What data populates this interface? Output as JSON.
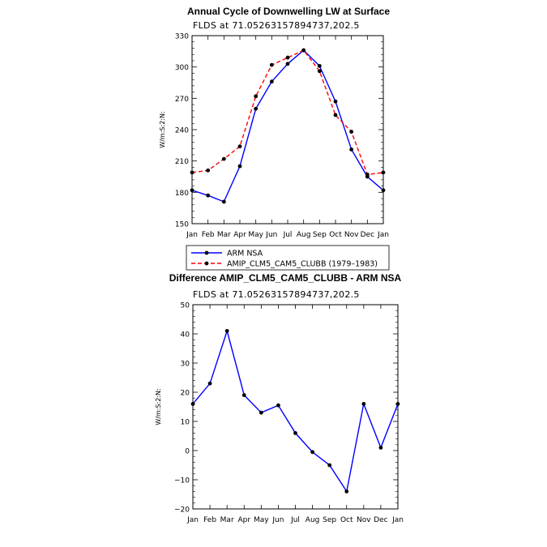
{
  "chart_data": [
    {
      "type": "line",
      "title": "Annual Cycle of Downwelling LW at Surface",
      "subtitle": "FLDS at 71.05263157894737,202.5",
      "xlabel": "",
      "ylabel": "W/m:S:2:N:",
      "categories": [
        "Jan",
        "Feb",
        "Mar",
        "Apr",
        "May",
        "Jun",
        "Jul",
        "Aug",
        "Sep",
        "Oct",
        "Nov",
        "Dec",
        "Jan"
      ],
      "ylim": [
        150,
        330
      ],
      "yticks": [
        150,
        180,
        210,
        240,
        270,
        300,
        330
      ],
      "series": [
        {
          "name": "ARM NSA",
          "color": "#0000ff",
          "dash": "solid",
          "values": [
            182,
            177,
            171,
            205,
            260,
            286,
            303,
            316,
            301,
            267,
            221,
            195,
            182
          ]
        },
        {
          "name": "AMIP_CLM5_CAM5_CLUBB (1979–1983)",
          "color": "#ff0000",
          "dash": "dashed",
          "values": [
            199,
            201,
            212,
            224,
            272,
            302,
            309,
            316,
            296,
            254,
            238,
            197,
            199
          ]
        }
      ],
      "legend": "below"
    },
    {
      "type": "line",
      "title": "Difference AMIP_CLM5_CAM5_CLUBB - ARM NSA",
      "subtitle": "FLDS at 71.05263157894737,202.5",
      "xlabel": "",
      "ylabel": "W/m:S:2:N:",
      "categories": [
        "Jan",
        "Feb",
        "Mar",
        "Apr",
        "May",
        "Jun",
        "Jul",
        "Aug",
        "Sep",
        "Oct",
        "Nov",
        "Dec",
        "Jan"
      ],
      "ylim": [
        -20,
        50
      ],
      "yticks": [
        -20,
        -10,
        0,
        10,
        20,
        30,
        40,
        50
      ],
      "series": [
        {
          "name": "Difference",
          "color": "#0000ff",
          "dash": "solid",
          "values": [
            16,
            23,
            41,
            19,
            13,
            15.5,
            6,
            -0.5,
            -5,
            -14,
            16,
            1,
            16
          ]
        }
      ]
    }
  ]
}
